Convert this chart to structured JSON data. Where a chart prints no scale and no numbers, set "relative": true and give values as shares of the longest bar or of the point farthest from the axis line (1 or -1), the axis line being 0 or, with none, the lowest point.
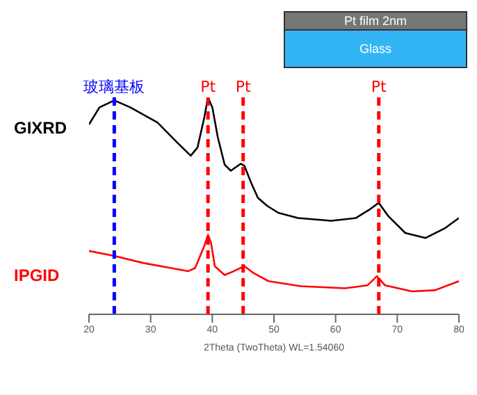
{
  "chart_data": {
    "type": "line",
    "relative": true,
    "xlabel": "2Theta (TwoTheta) WL=1.54060",
    "xlim": [
      20,
      80
    ],
    "xticks": [
      20,
      30,
      40,
      50,
      60,
      70,
      80
    ],
    "grid": false,
    "legend": false,
    "marker": "none",
    "line_style": "solid",
    "annotations": [
      "Pt film 2nm",
      "Glass"
    ],
    "ref_lines": [
      {
        "axis": "x",
        "value": 24.1,
        "label": "玻璃基板",
        "color": "#0000ff",
        "line_style": "dashed"
      },
      {
        "axis": "x",
        "value": 39.3,
        "label": "Pt",
        "color": "#ff0000",
        "line_style": "dashed"
      },
      {
        "axis": "x",
        "value": 45.0,
        "label": "Pt",
        "color": "#ff0000",
        "line_style": "dashed"
      },
      {
        "axis": "x",
        "value": 67.0,
        "label": "Pt",
        "color": "#ff0000",
        "line_style": "dashed"
      }
    ],
    "series": [
      {
        "name": "GIXRD",
        "color": "#000000",
        "x": [
          20,
          21.7,
          24.1,
          26.7,
          31.1,
          34.3,
          36.5,
          37.6,
          38.7,
          39.3,
          40.0,
          40.9,
          42.0,
          43.0,
          44.6,
          45.2,
          46.3,
          47.4,
          48.9,
          50.7,
          53.9,
          59.3,
          63.3,
          65.4,
          67.0,
          68.5,
          71.3,
          74.6,
          77.8,
          80
        ],
        "values": [
          0.875,
          0.954,
          0.986,
          0.954,
          0.884,
          0.792,
          0.731,
          0.769,
          0.907,
          1.0,
          0.954,
          0.815,
          0.69,
          0.662,
          0.694,
          0.685,
          0.606,
          0.537,
          0.5,
          0.468,
          0.444,
          0.431,
          0.444,
          0.481,
          0.514,
          0.454,
          0.375,
          0.352,
          0.398,
          0.444
        ]
      },
      {
        "name": "IPGID",
        "color": "#ff0000",
        "x": [
          20,
          24.1,
          28.9,
          36.1,
          37.2,
          38.7,
          39.3,
          39.8,
          40.4,
          42.0,
          43.5,
          45.2,
          46.7,
          49.1,
          54.3,
          61.5,
          65.2,
          66.7,
          68.0,
          72.4,
          76.1,
          80
        ],
        "values": [
          0.292,
          0.269,
          0.236,
          0.199,
          0.213,
          0.315,
          0.366,
          0.329,
          0.222,
          0.181,
          0.199,
          0.222,
          0.19,
          0.153,
          0.13,
          0.12,
          0.134,
          0.176,
          0.134,
          0.106,
          0.111,
          0.153
        ]
      }
    ]
  }
}
